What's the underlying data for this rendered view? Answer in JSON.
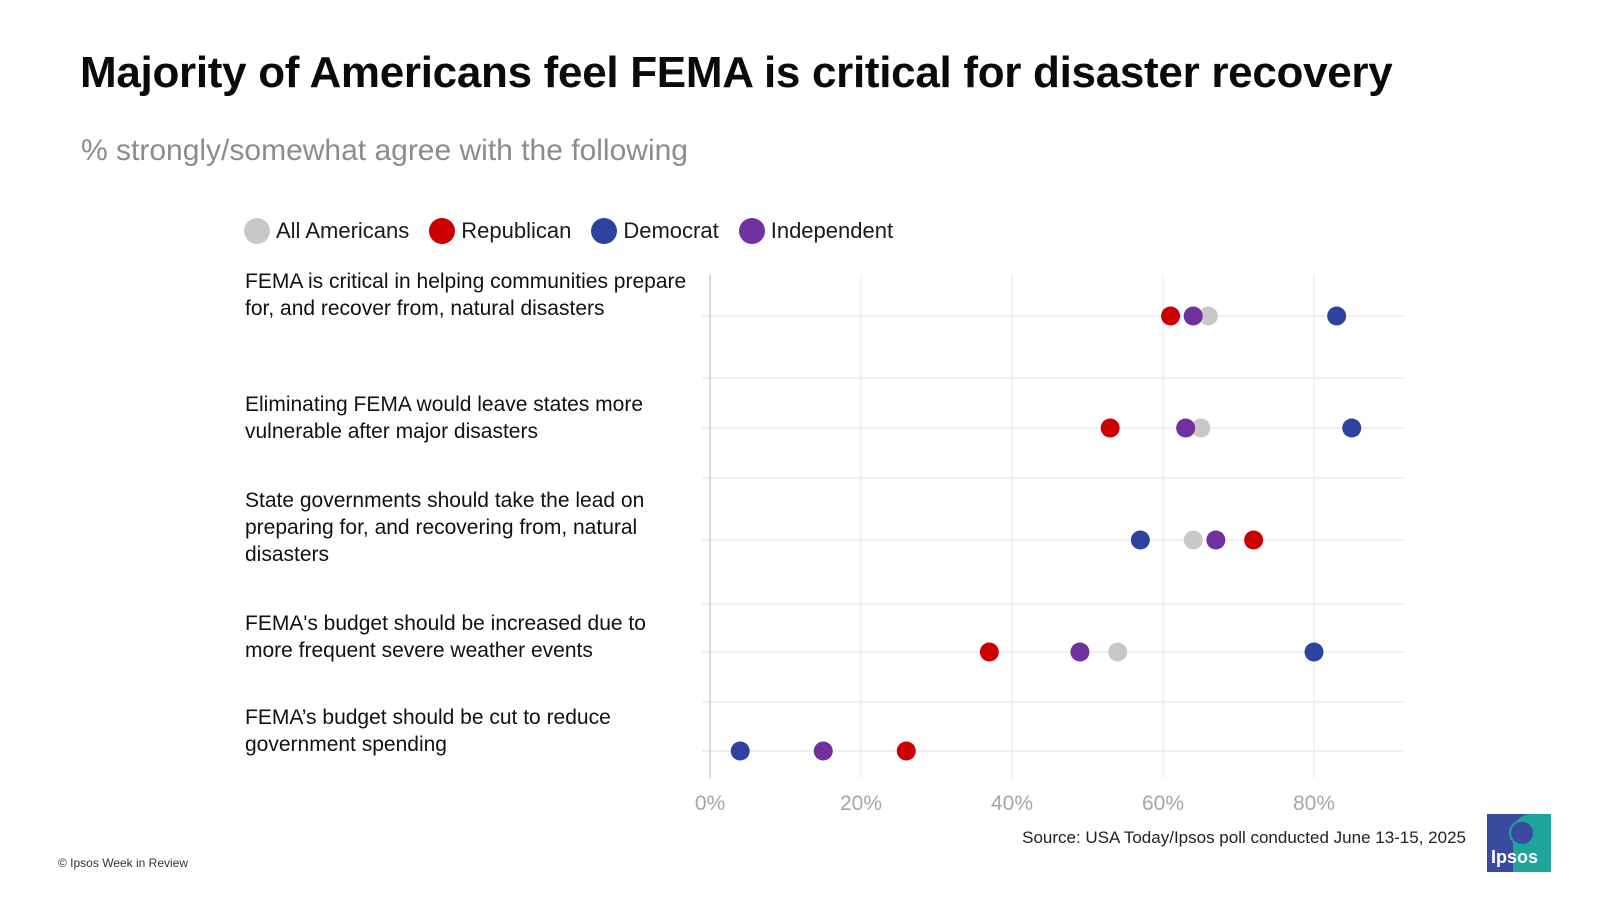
{
  "header": {
    "title": "Majority of Americans feel FEMA is critical for disaster recovery",
    "subtitle": "% strongly/somewhat agree with the following"
  },
  "chart_data": {
    "type": "scatter",
    "title": "Majority of Americans feel FEMA is critical for disaster recovery",
    "subtitle": "% strongly/somewhat agree with the following",
    "categories": [
      "FEMA is critical in helping communities prepare for, and recover from, natural disasters",
      "Eliminating FEMA would leave states more vulnerable after major disasters",
      "State governments should take the lead on preparing for, and recovering from, natural disasters",
      "FEMA's budget should be increased due to more frequent severe weather events",
      "FEMA’s budget should be cut to reduce government spending"
    ],
    "series": [
      {
        "name": "All Americans",
        "color": "#c8c8c8",
        "values": [
          66,
          65,
          64,
          54,
          null
        ]
      },
      {
        "name": "Republican",
        "color": "#cc0000",
        "values": [
          61,
          53,
          72,
          37,
          26
        ]
      },
      {
        "name": "Democrat",
        "color": "#2e43a0",
        "values": [
          83,
          85,
          57,
          80,
          4
        ]
      },
      {
        "name": "Independent",
        "color": "#7030a0",
        "values": [
          64,
          63,
          67,
          49,
          15
        ]
      }
    ],
    "xlim": [
      0,
      92
    ],
    "xticks": [
      0,
      20,
      40,
      60,
      80
    ],
    "xtick_labels": [
      "0%",
      "20%",
      "40%",
      "60%",
      "80%"
    ],
    "grid": true,
    "legend": "top-left"
  },
  "footer": {
    "source": "Source: USA Today/Ipsos poll conducted June 13-15, 2025",
    "copyright": "© Ipsos Week in Review",
    "logo_text": "Ipsos"
  },
  "colors": {
    "grid": "#ebebeb",
    "axis": "#d0d0d0",
    "tick_text": "#a6a6a6",
    "logo_blue": "#3a4a9e",
    "logo_teal": "#1fa39b"
  }
}
